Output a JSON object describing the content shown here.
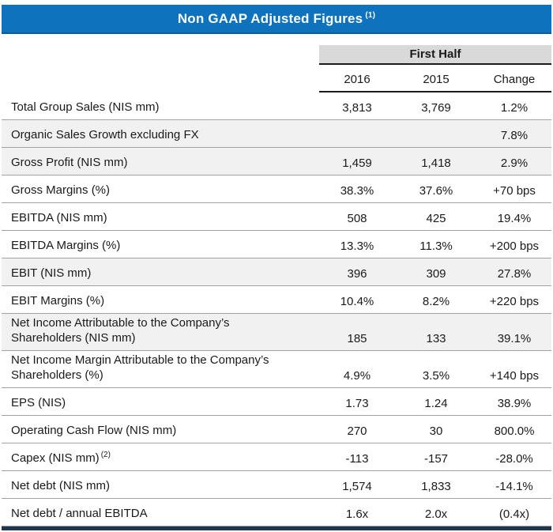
{
  "title": {
    "text": "Non GAAP Adjusted Figures",
    "sup": "(1)"
  },
  "header": {
    "group": "First Half",
    "col_2016": "2016",
    "col_2015": "2015",
    "col_change": "Change"
  },
  "colors": {
    "title_bar_blue": "#0E72BD",
    "group_header_gray": "#D9D9D9",
    "shaded_row_gray": "#F1F1F1",
    "bottom_bar_navy": "#1F3550"
  },
  "rows": [
    {
      "label": "Total Group Sales (NIS mm)",
      "sup": "",
      "y2016": "3,813",
      "y2015": "3,769",
      "change": "1.2%"
    },
    {
      "label": "Organic Sales Growth excluding FX",
      "sup": "",
      "y2016": "",
      "y2015": "",
      "change": "7.8%"
    },
    {
      "label": "Gross Profit (NIS mm)",
      "sup": "",
      "y2016": "1,459",
      "y2015": "1,418",
      "change": "2.9%"
    },
    {
      "label": "Gross Margins (%)",
      "sup": "",
      "y2016": "38.3%",
      "y2015": "37.6%",
      "change": "+70 bps"
    },
    {
      "label": "EBITDA (NIS mm)",
      "sup": "",
      "y2016": "508",
      "y2015": "425",
      "change": "19.4%"
    },
    {
      "label": "EBITDA Margins (%)",
      "sup": "",
      "y2016": "13.3%",
      "y2015": "11.3%",
      "change": "+200 bps"
    },
    {
      "label": "EBIT (NIS mm)",
      "sup": "",
      "y2016": "396",
      "y2015": "309",
      "change": "27.8%"
    },
    {
      "label": "EBIT Margins (%)",
      "sup": "",
      "y2016": "10.4%",
      "y2015": "8.2%",
      "change": "+220 bps"
    },
    {
      "label": "Net Income Attributable to the Company’s Shareholders (NIS mm)",
      "sup": "",
      "y2016": "185",
      "y2015": "133",
      "change": "39.1%"
    },
    {
      "label": "Net Income Margin Attributable to the Company’s Shareholders (%)",
      "sup": "",
      "y2016": "4.9%",
      "y2015": "3.5%",
      "change": "+140 bps"
    },
    {
      "label": "EPS (NIS)",
      "sup": "",
      "y2016": "1.73",
      "y2015": "1.24",
      "change": "38.9%"
    },
    {
      "label": "Operating Cash Flow (NIS mm)",
      "sup": "",
      "y2016": "270",
      "y2015": "30",
      "change": "800.0%"
    },
    {
      "label": "Capex (NIS mm)",
      "sup": "(2)",
      "y2016": "-113",
      "y2015": "-157",
      "change": "-28.0%"
    },
    {
      "label": "Net debt (NIS mm)",
      "sup": "",
      "y2016": "1,574",
      "y2015": "1,833",
      "change": "-14.1%"
    },
    {
      "label": "Net debt / annual EBITDA",
      "sup": "",
      "y2016": "1.6x",
      "y2015": "2.0x",
      "change": "(0.4x)"
    }
  ]
}
